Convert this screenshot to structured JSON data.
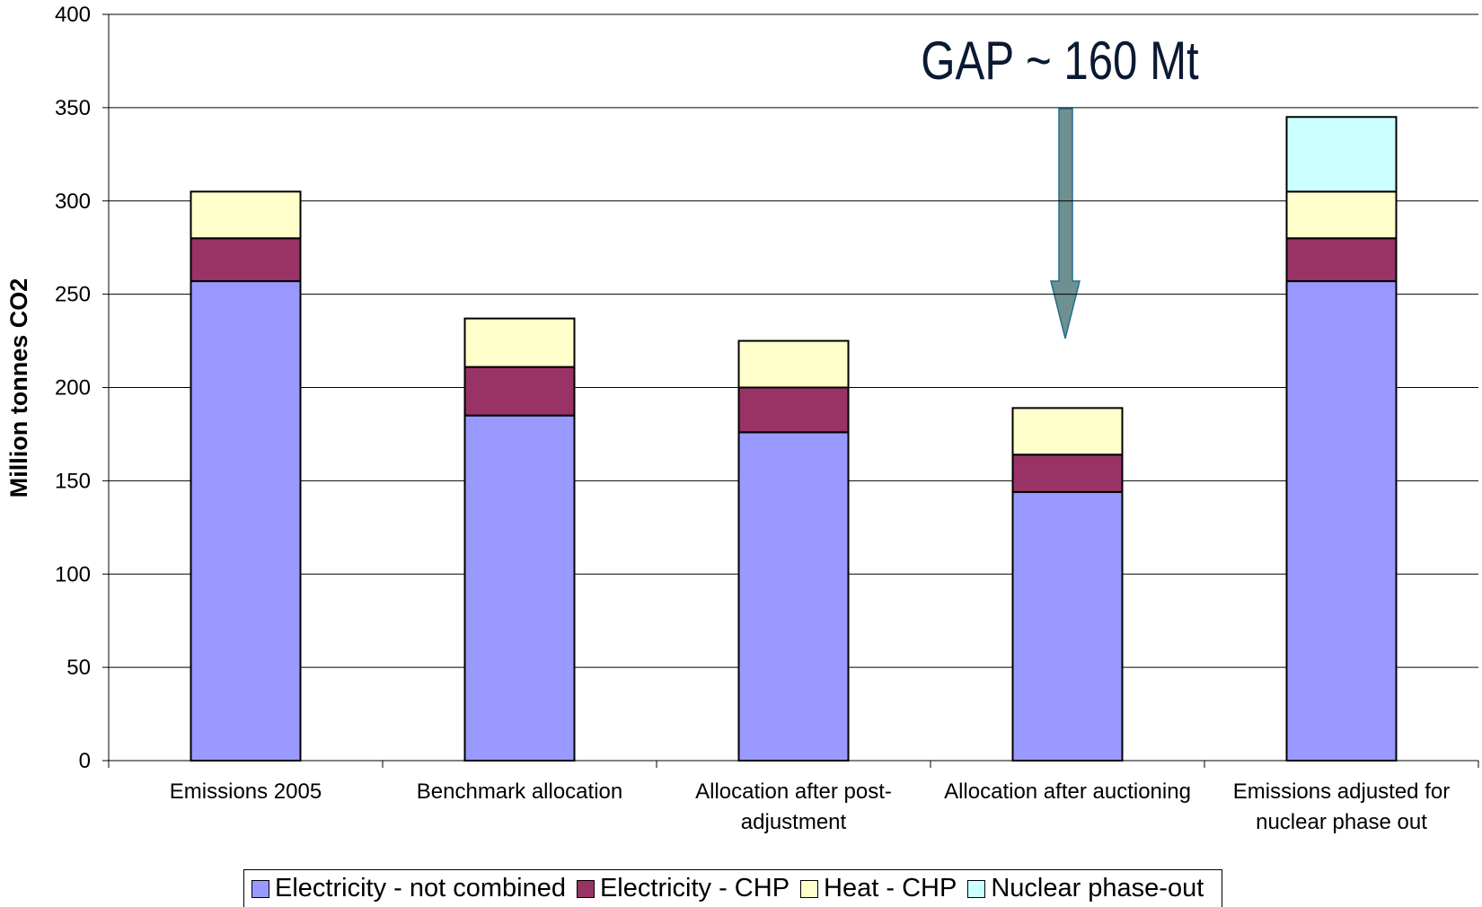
{
  "chart_data": {
    "type": "stacked_bar",
    "annotation": "GAP ~ 160 Mt",
    "y_label": "Million tonnes CO2",
    "categories": [
      "Emissions 2005",
      "Benchmark allocation",
      "Allocation after post-adjustment",
      "Allocation after auctioning",
      "Emissions adjusted for nuclear phase out"
    ],
    "series": [
      {
        "name": "Electricity - not combined",
        "color": "#9999ff",
        "values": [
          257,
          185,
          176,
          144,
          257
        ]
      },
      {
        "name": "Electricity - CHP",
        "color": "#993366",
        "values": [
          23,
          26,
          24,
          20,
          23
        ]
      },
      {
        "name": "Heat - CHP",
        "color": "#ffffcc",
        "values": [
          25,
          26,
          25,
          25,
          25
        ]
      },
      {
        "name": "Nuclear phase-out",
        "color": "#ccffff",
        "values": [
          null,
          null,
          null,
          null,
          40
        ]
      }
    ],
    "ylim": [
      0,
      400
    ],
    "yticks": [
      0,
      50,
      100,
      150,
      200,
      250,
      300,
      350,
      400
    ],
    "grid": true
  }
}
